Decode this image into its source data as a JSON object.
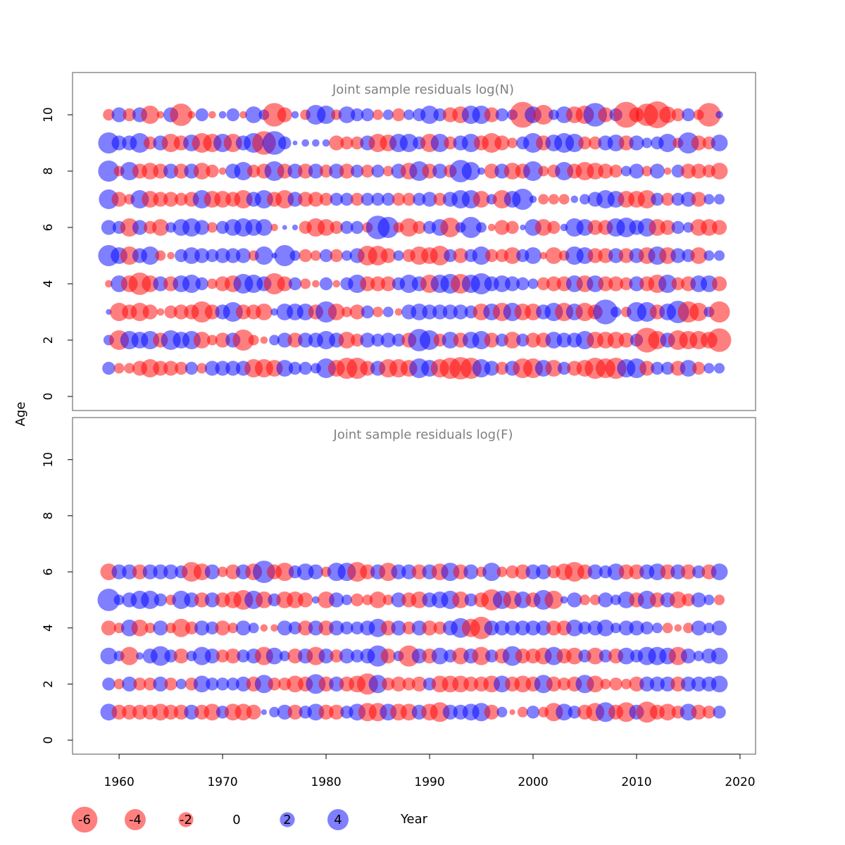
{
  "chart_data": [
    {
      "type": "scatter",
      "title": "Joint sample residuals log(N)",
      "xlim": [
        1955.5,
        2021.5
      ],
      "ylim": [
        -0.5,
        11.5
      ],
      "xticks": [
        1960,
        1970,
        1980,
        1990,
        2000,
        2010,
        2020
      ],
      "yticks": [
        0,
        2,
        4,
        6,
        8,
        10
      ],
      "years": [
        1959,
        2018
      ],
      "ages": [
        1,
        2,
        3,
        4,
        5,
        6,
        7,
        8,
        9,
        10
      ],
      "residuals": {
        "10": [
          -1.2,
          2.0,
          -1.5,
          2.0,
          -3.0,
          -0.5,
          2.0,
          -4.5,
          -0.5,
          1.5,
          -0.5,
          0.5,
          1.5,
          -0.5,
          2.5,
          1.0,
          -5.0,
          -2.0,
          0.5,
          -1.0,
          3.5,
          3.0,
          -1.0,
          2.5,
          1.5,
          1.5,
          -1.0,
          1.0,
          -1.5,
          1.0,
          1.5,
          3.0,
          1.5,
          -2.0,
          -2.5,
          3.0,
          3.0,
          -2.0,
          1.5,
          1.0,
          -6.0,
          2.5,
          -3.5,
          1.0,
          2.5,
          -2.5,
          -3.0,
          5.0,
          -2.0,
          1.5,
          -6.0,
          -2.0,
          -4.5,
          -6.5,
          -2.5,
          -1.5,
          1.5,
          -1.0,
          -5.0,
          0.5
        ],
        "9": [
          4.0,
          2.0,
          2.0,
          3.5,
          -1.5,
          2.0,
          -3.0,
          -2.0,
          2.5,
          -3.5,
          -3.0,
          3.0,
          -3.0,
          2.0,
          3.5,
          -5.0,
          5.0,
          1.5,
          0.2,
          0.5,
          0.5,
          0.5,
          -2.0,
          -1.5,
          -1.5,
          2.0,
          -3.0,
          -2.5,
          3.0,
          3.0,
          1.5,
          -3.0,
          3.0,
          -1.5,
          2.0,
          3.0,
          -2.0,
          -3.5,
          -2.0,
          -1.0,
          1.5,
          3.5,
          -2.0,
          2.5,
          3.5,
          3.0,
          -1.5,
          -1.5,
          2.0,
          2.5,
          -2.0,
          2.0,
          1.0,
          1.5,
          3.0,
          -1.0,
          4.0,
          -2.0,
          -1.5,
          2.5
        ],
        "8": [
          4.0,
          -1.0,
          3.0,
          -2.0,
          -2.5,
          -2.0,
          2.0,
          -2.0,
          2.0,
          -2.5,
          -1.5,
          -0.5,
          2.0,
          3.0,
          -1.5,
          -2.0,
          3.5,
          -2.0,
          2.0,
          -2.0,
          2.0,
          -1.5,
          2.0,
          -2.0,
          1.5,
          -1.5,
          1.5,
          -1.0,
          2.0,
          -2.5,
          3.5,
          -2.0,
          2.0,
          -1.5,
          4.5,
          3.0,
          0.5,
          -2.0,
          2.0,
          -2.5,
          -2.0,
          3.5,
          -1.0,
          -1.5,
          3.0,
          -2.0,
          -3.0,
          -2.5,
          -2.0,
          -1.5,
          1.0,
          2.0,
          -1.0,
          2.0,
          -0.5,
          1.5,
          -2.0,
          -2.0,
          -1.5,
          -2.5
        ],
        "7": [
          3.5,
          -2.0,
          -1.0,
          3.0,
          -2.5,
          -2.0,
          -2.0,
          -1.5,
          -2.0,
          3.0,
          -2.5,
          -2.5,
          -2.0,
          -3.0,
          2.0,
          3.0,
          -2.0,
          -3.0,
          2.0,
          -2.0,
          -2.0,
          -1.5,
          1.5,
          1.5,
          -1.5,
          1.5,
          1.5,
          1.5,
          -1.5,
          -1.5,
          1.5,
          2.0,
          -1.5,
          2.0,
          3.0,
          3.0,
          -2.5,
          1.0,
          -3.0,
          2.5,
          4.0,
          0.5,
          -1.0,
          -1.0,
          -1.0,
          0.5,
          1.0,
          2.0,
          3.0,
          2.5,
          -2.5,
          -2.5,
          -3.0,
          1.5,
          -1.5,
          1.5,
          2.0,
          -2.0,
          1.0,
          1.0
        ],
        "6": [
          2.0,
          1.5,
          -3.0,
          2.0,
          -1.5,
          -2.5,
          1.0,
          2.5,
          3.0,
          2.0,
          -1.0,
          1.5,
          2.5,
          3.0,
          2.5,
          2.5,
          -0.5,
          0.2,
          0.3,
          -1.5,
          -3.0,
          -2.5,
          -1.5,
          1.5,
          1.5,
          -1.0,
          5.0,
          4.0,
          -1.0,
          -3.0,
          -1.5,
          1.5,
          2.5,
          -3.5,
          1.0,
          4.0,
          1.0,
          -0.5,
          -2.0,
          -1.5,
          0.3,
          2.5,
          -2.5,
          -1.5,
          0.5,
          3.0,
          2.5,
          -2.0,
          -2.0,
          3.0,
          3.5,
          2.0,
          3.0,
          -2.5,
          -2.0,
          1.5,
          1.0,
          -2.5,
          -2.5,
          -2.0
        ],
        "5": [
          4.0,
          2.5,
          -3.0,
          2.0,
          3.0,
          -1.0,
          -0.5,
          1.5,
          2.5,
          2.0,
          1.5,
          2.0,
          2.0,
          2.0,
          -1.0,
          3.0,
          0.3,
          4.0,
          1.0,
          -1.5,
          -1.0,
          1.5,
          -1.5,
          1.0,
          2.0,
          -3.5,
          -3.5,
          -2.0,
          1.0,
          -1.5,
          -3.0,
          -2.5,
          -3.5,
          1.5,
          -2.0,
          1.5,
          3.0,
          -1.5,
          -1.5,
          -2.5,
          1.5,
          2.5,
          -0.5,
          -2.5,
          -1.0,
          3.0,
          2.5,
          -2.0,
          -2.0,
          2.0,
          -2.0,
          2.0,
          -2.5,
          3.0,
          -2.5,
          2.0,
          1.5,
          -2.5,
          1.0,
          1.0
        ],
        "4": [
          -0.5,
          2.5,
          -2.5,
          -4.5,
          -2.5,
          2.0,
          -2.0,
          2.5,
          3.0,
          1.5,
          -1.0,
          -2.0,
          -2.5,
          3.5,
          3.0,
          2.0,
          -4.0,
          -2.0,
          1.5,
          -1.0,
          -0.5,
          1.5,
          -0.5,
          1.5,
          3.0,
          -2.0,
          -2.0,
          -2.0,
          1.5,
          3.0,
          2.0,
          -3.0,
          3.0,
          3.5,
          -3.5,
          3.0,
          4.0,
          2.0,
          2.5,
          2.0,
          1.5,
          1.0,
          -1.5,
          -2.0,
          -2.0,
          2.5,
          -2.5,
          2.5,
          -2.0,
          -2.0,
          -1.5,
          2.0,
          -2.0,
          -3.0,
          3.0,
          -1.5,
          -2.0,
          2.5,
          2.5,
          -2.0
        ],
        "3": [
          0.3,
          -3.0,
          -2.0,
          -3.0,
          -2.0,
          -0.5,
          -1.5,
          -2.0,
          -2.0,
          -4.0,
          -2.0,
          2.0,
          3.5,
          -2.0,
          -2.0,
          -2.5,
          0.5,
          2.5,
          2.5,
          2.5,
          -2.0,
          4.0,
          -2.5,
          -1.0,
          -2.0,
          1.5,
          -1.0,
          1.0,
          -0.5,
          2.0,
          2.5,
          2.0,
          2.0,
          2.0,
          2.0,
          1.5,
          -2.5,
          2.5,
          -3.0,
          3.0,
          -2.5,
          -2.5,
          2.0,
          3.0,
          -3.0,
          2.5,
          -3.0,
          -2.0,
          5.5,
          1.0,
          -1.0,
          3.5,
          3.5,
          -2.0,
          2.5,
          4.5,
          -4.0,
          -3.0,
          1.0,
          -4.0
        ],
        "2": [
          1.0,
          -3.5,
          3.0,
          2.5,
          3.0,
          -2.0,
          3.5,
          2.5,
          3.0,
          -2.5,
          -1.0,
          -2.0,
          2.0,
          -4.0,
          -1.0,
          -0.5,
          1.0,
          2.0,
          -2.0,
          2.0,
          2.0,
          3.0,
          2.0,
          -2.5,
          -1.5,
          2.0,
          1.5,
          2.0,
          1.5,
          -2.0,
          4.5,
          3.5,
          -1.5,
          2.5,
          -2.0,
          2.5,
          3.0,
          -2.0,
          1.5,
          -2.5,
          1.5,
          -2.0,
          -2.0,
          2.5,
          2.0,
          2.0,
          3.0,
          -2.5,
          -2.5,
          -2.5,
          -2.0,
          1.5,
          -5.5,
          -3.0,
          2.0,
          -3.5,
          -3.0,
          -3.0,
          -2.5,
          -5.0
        ],
        "1": [
          1.5,
          -1.0,
          -1.0,
          -2.0,
          -3.0,
          -2.0,
          -2.0,
          -1.5,
          1.5,
          -1.0,
          2.0,
          2.0,
          2.0,
          2.0,
          -3.0,
          -3.0,
          -2.5,
          2.5,
          1.5,
          1.5,
          1.0,
          3.5,
          -2.5,
          -4.0,
          -4.0,
          -2.0,
          2.0,
          -3.0,
          -3.0,
          -2.5,
          3.5,
          2.5,
          -3.0,
          -4.0,
          -4.5,
          -4.0,
          3.0,
          2.0,
          -1.5,
          2.0,
          -3.5,
          -3.5,
          2.5,
          -2.5,
          1.5,
          -2.0,
          -2.5,
          -4.0,
          -3.5,
          -4.0,
          3.0,
          3.5,
          -2.0,
          1.5,
          1.5,
          -2.0,
          2.5,
          -1.5,
          1.0,
          1.0
        ]
      }
    },
    {
      "type": "scatter",
      "title": "Joint sample residuals log(F)",
      "xlim": [
        1955.5,
        2021.5
      ],
      "ylim": [
        -0.5,
        11.5
      ],
      "xticks": [
        1960,
        1970,
        1980,
        1990,
        2000,
        2010,
        2020
      ],
      "yticks": [
        0,
        2,
        4,
        6,
        8,
        10
      ],
      "xlabel": "Year",
      "ylabel": "Age",
      "years": [
        1959,
        2018
      ],
      "ages": [
        1,
        2,
        3,
        4,
        5,
        6
      ],
      "residuals": {
        "6": [
          -2.5,
          2.0,
          2.0,
          -2.0,
          2.0,
          2.0,
          2.0,
          1.5,
          -3.5,
          -2.5,
          2.0,
          -1.0,
          -2.0,
          2.0,
          -2.5,
          4.5,
          -2.0,
          -3.0,
          1.5,
          2.5,
          2.0,
          -1.0,
          3.0,
          3.0,
          -3.5,
          -2.0,
          2.0,
          -3.0,
          2.0,
          2.0,
          -2.0,
          2.0,
          -2.5,
          3.0,
          -2.0,
          2.0,
          -1.0,
          3.0,
          -1.0,
          -1.5,
          -2.0,
          2.0,
          2.0,
          -1.5,
          -2.5,
          -3.5,
          -2.0,
          2.0,
          1.5,
          2.5,
          -2.0,
          -2.0,
          2.0,
          2.5,
          -2.0,
          2.0,
          -2.0,
          1.5,
          -2.0,
          2.5
        ],
        "5": [
          4.5,
          1.0,
          2.0,
          3.0,
          3.0,
          1.5,
          -1.0,
          3.0,
          2.0,
          -2.0,
          2.0,
          -2.0,
          -2.5,
          -3.5,
          3.0,
          -2.5,
          1.5,
          -2.5,
          -2.5,
          -2.0,
          0.5,
          -2.5,
          2.0,
          1.0,
          -1.5,
          -1.0,
          -2.5,
          -1.0,
          2.0,
          -2.0,
          -2.5,
          2.0,
          2.5,
          3.0,
          -2.5,
          1.5,
          -2.0,
          -4.0,
          3.0,
          -3.0,
          2.5,
          -2.0,
          3.5,
          -3.0,
          0.5,
          2.0,
          -1.0,
          -1.0,
          2.0,
          1.0,
          2.5,
          -2.0,
          3.0,
          -2.0,
          2.0,
          -2.5,
          -1.5,
          2.0,
          1.0,
          -1.0
        ],
        "4": [
          -2.0,
          -1.0,
          2.5,
          -2.5,
          -1.0,
          2.0,
          -1.0,
          -3.0,
          -1.5,
          2.0,
          1.5,
          -2.0,
          -1.0,
          2.0,
          1.0,
          -0.5,
          -0.5,
          2.0,
          1.5,
          -2.0,
          2.0,
          -2.0,
          2.0,
          1.5,
          1.5,
          2.0,
          3.0,
          -2.0,
          2.0,
          -1.5,
          2.0,
          -2.0,
          -1.5,
          2.0,
          3.5,
          -3.0,
          -4.5,
          2.0,
          2.0,
          2.0,
          2.0,
          2.0,
          2.0,
          -2.0,
          -2.0,
          2.5,
          1.5,
          2.0,
          2.5,
          1.0,
          2.0,
          2.0,
          1.5,
          1.0,
          -1.0,
          -0.5,
          -1.0,
          2.0,
          1.0,
          2.0
        ],
        "3": [
          2.5,
          1.0,
          -3.0,
          0.5,
          2.0,
          3.5,
          1.5,
          -2.0,
          1.0,
          3.0,
          2.0,
          -1.5,
          -2.0,
          1.5,
          2.0,
          -3.0,
          2.5,
          1.0,
          -2.0,
          2.0,
          -3.0,
          2.0,
          -1.5,
          2.0,
          1.5,
          2.0,
          4.0,
          -2.0,
          1.0,
          -4.0,
          2.0,
          -2.0,
          2.5,
          1.5,
          -2.5,
          2.0,
          -3.0,
          1.5,
          -2.0,
          3.5,
          -2.0,
          -2.0,
          -2.5,
          3.0,
          -2.0,
          -2.5,
          1.5,
          -2.5,
          1.5,
          -2.0,
          2.5,
          1.5,
          3.0,
          3.0,
          2.5,
          -3.0,
          2.0,
          1.0,
          2.0,
          2.5
        ],
        "2": [
          1.5,
          -1.0,
          2.0,
          -1.5,
          -1.5,
          2.0,
          -1.5,
          1.0,
          -1.5,
          2.5,
          1.5,
          1.5,
          1.5,
          2.0,
          -2.0,
          3.0,
          -1.5,
          -1.5,
          -2.5,
          -2.0,
          3.5,
          -2.0,
          2.0,
          -2.0,
          -2.5,
          -4.0,
          3.0,
          -1.5,
          -2.0,
          -1.5,
          -2.0,
          1.5,
          -2.5,
          -2.5,
          -2.5,
          -2.0,
          -2.0,
          -2.5,
          2.5,
          -2.0,
          -2.5,
          -2.0,
          3.0,
          -2.0,
          -1.5,
          -2.0,
          3.0,
          -2.5,
          -1.0,
          -1.5,
          -1.0,
          -2.0,
          2.0,
          2.0,
          2.0,
          -2.0,
          2.0,
          2.0,
          2.0,
          2.5
        ],
        "1": [
          2.5,
          -2.0,
          -2.0,
          -2.0,
          -2.0,
          -2.5,
          -2.0,
          -2.0,
          2.0,
          -2.0,
          -2.5,
          1.5,
          -2.5,
          -2.5,
          -2.0,
          0.3,
          1.0,
          2.0,
          -2.0,
          1.5,
          2.5,
          -2.0,
          -2.0,
          1.5,
          2.5,
          -3.0,
          -3.0,
          2.5,
          -2.5,
          -2.5,
          2.0,
          -2.5,
          -3.5,
          2.0,
          2.0,
          2.5,
          3.0,
          -2.0,
          1.0,
          -0.3,
          -1.0,
          1.5,
          -1.0,
          -3.0,
          2.5,
          1.5,
          -2.0,
          -3.0,
          3.5,
          -2.0,
          -3.5,
          2.0,
          -4.0,
          -2.0,
          -2.5,
          -1.5,
          2.5,
          -2.0,
          -1.5,
          1.5
        ]
      }
    }
  ],
  "legend": {
    "items": [
      {
        "label": "-6",
        "value": -6
      },
      {
        "label": "-4",
        "value": -4
      },
      {
        "label": "-2",
        "value": -2
      },
      {
        "label": "0",
        "value": 0
      },
      {
        "label": "2",
        "value": 2
      },
      {
        "label": "4",
        "value": 4
      }
    ]
  },
  "colors": {
    "negative": "#ff0000",
    "positive": "#0000ff",
    "opacity": 0.5,
    "title": "#808080",
    "frame": "#555555"
  }
}
